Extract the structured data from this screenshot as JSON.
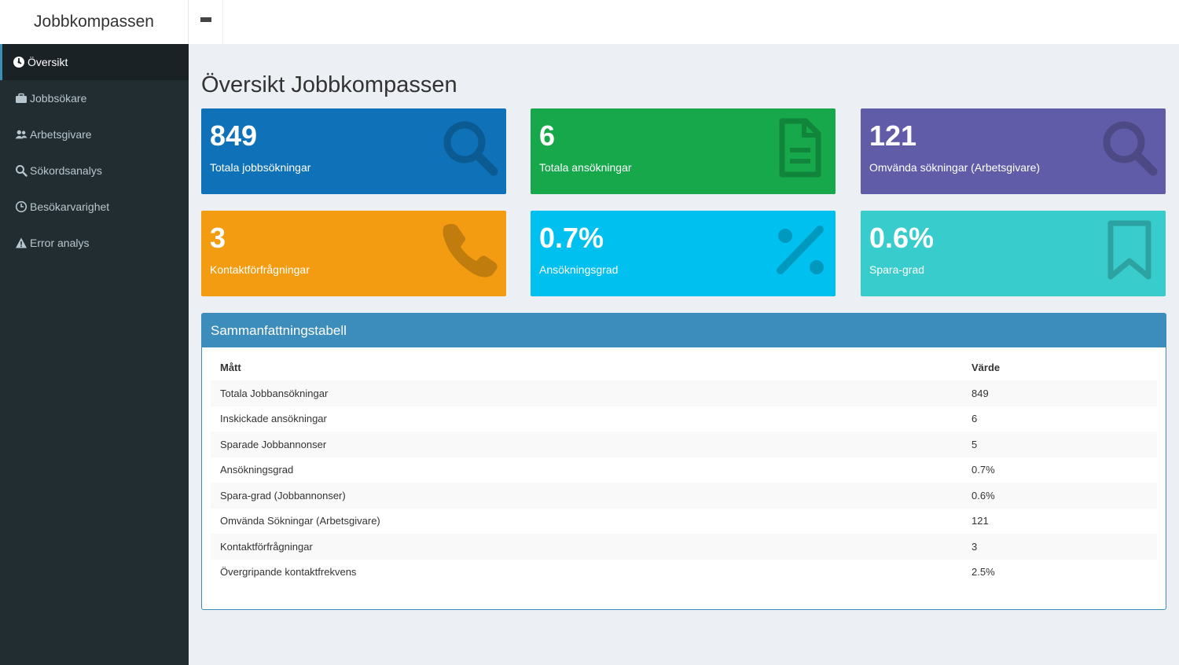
{
  "header": {
    "logo": "Jobbkompassen"
  },
  "sidebar": {
    "items": [
      {
        "label": "Översikt",
        "icon": "dashboard-icon"
      },
      {
        "label": "Jobbsökare",
        "icon": "briefcase-icon"
      },
      {
        "label": "Arbetsgivare",
        "icon": "users-icon"
      },
      {
        "label": "Sökordsanalys",
        "icon": "search-icon"
      },
      {
        "label": "Besökarvarighet",
        "icon": "clock-icon"
      },
      {
        "label": "Error analys",
        "icon": "warning-icon"
      }
    ]
  },
  "main": {
    "title": "Översikt Jobbkompassen",
    "boxes": [
      {
        "value": "849",
        "label": "Totala jobbsökningar",
        "color": "#0f72b8",
        "icon": "search-icon"
      },
      {
        "value": "6",
        "label": "Totala ansökningar",
        "color": "#16a84b",
        "icon": "file-icon"
      },
      {
        "value": "121",
        "label": "Omvända sökningar (Arbetsgivare)",
        "color": "#605ca8",
        "icon": "search-icon"
      },
      {
        "value": "3",
        "label": "Kontaktförfrågningar",
        "color": "#f39c12",
        "icon": "phone-icon"
      },
      {
        "value": "0.7%",
        "label": "Ansökningsgrad",
        "color": "#00c0ef",
        "icon": "percent-icon"
      },
      {
        "value": "0.6%",
        "label": "Spara-grad",
        "color": "#39cccc",
        "icon": "bookmark-icon"
      }
    ],
    "summary": {
      "title": "Sammanfattningstabell",
      "headers": [
        "Mått",
        "Värde"
      ],
      "rows": [
        [
          "Totala Jobbansökningar",
          "849"
        ],
        [
          "Inskickade ansökningar",
          "6"
        ],
        [
          "Sparade Jobbannonser",
          "5"
        ],
        [
          "Ansökningsgrad",
          "0.7%"
        ],
        [
          "Spara-grad (Jobbannonser)",
          "0.6%"
        ],
        [
          "Omvända Sökningar (Arbetsgivare)",
          "121"
        ],
        [
          "Kontaktförfrågningar",
          "3"
        ],
        [
          "Övergripande kontaktfrekvens",
          "2.5%"
        ]
      ]
    }
  }
}
